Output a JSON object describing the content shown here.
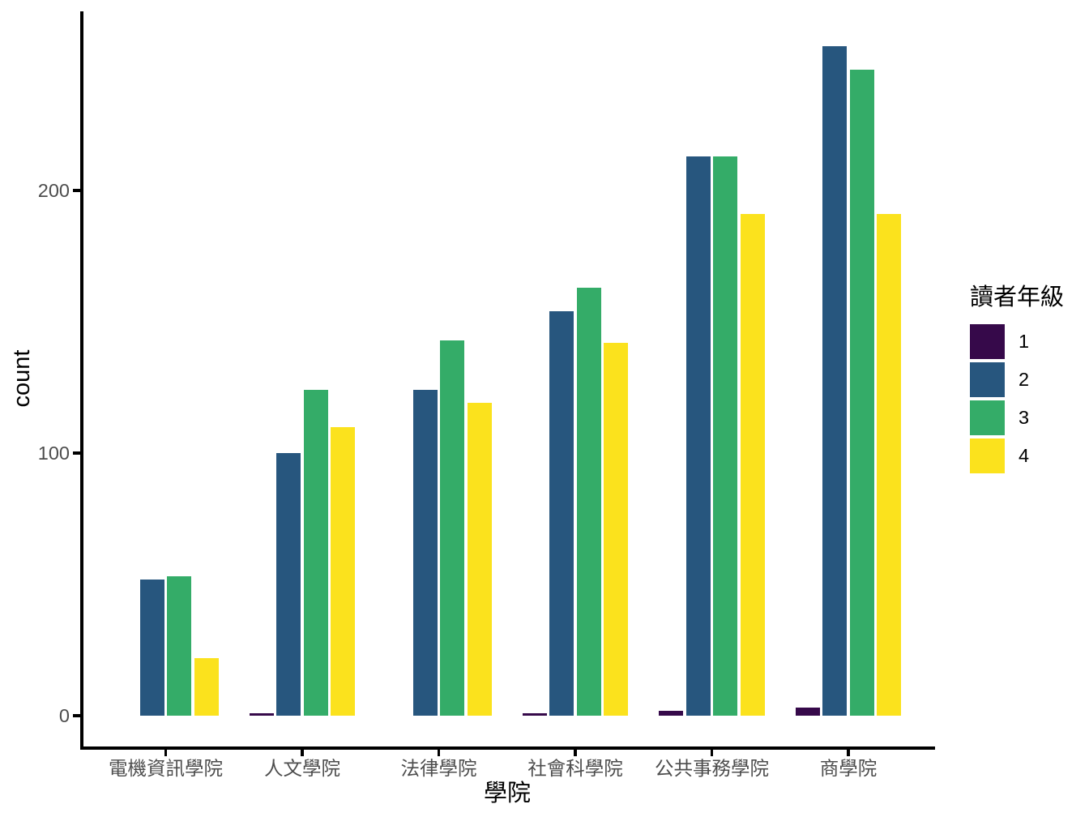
{
  "chart_data": {
    "type": "bar",
    "bar_mode": "grouped",
    "title": "",
    "categories": [
      "電機資訊學院",
      "人文學院",
      "法律學院",
      "社會科學院",
      "公共事務學院",
      "商學院"
    ],
    "series": [
      {
        "name": "1",
        "color": "#36094A",
        "values": [
          0,
          1,
          0,
          1,
          2,
          3
        ]
      },
      {
        "name": "2",
        "color": "#27567E",
        "values": [
          52,
          100,
          124,
          154,
          213,
          255
        ]
      },
      {
        "name": "3",
        "color": "#34AC68",
        "values": [
          53,
          124,
          143,
          163,
          213,
          246
        ]
      },
      {
        "name": "4",
        "color": "#FBE21D",
        "values": [
          22,
          110,
          119,
          142,
          191,
          191
        ]
      }
    ],
    "xlabel": "學院",
    "ylabel": "count",
    "ytick_labels": [
      "0",
      "100",
      "200"
    ],
    "ytick_values": [
      0,
      100,
      200
    ],
    "ylim": [
      0,
      268
    ],
    "grid": false,
    "legend": {
      "title": "讀者年級",
      "entries": [
        "1",
        "2",
        "3",
        "4"
      ],
      "position": "right"
    },
    "colors": {
      "axis": "#000000",
      "tick_label": "#4D4D4D",
      "title_text": "#000000",
      "background": "#FFFFFF"
    }
  }
}
